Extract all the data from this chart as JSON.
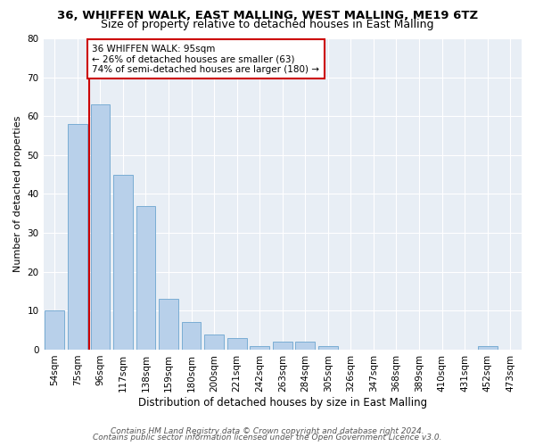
{
  "title_line1": "36, WHIFFEN WALK, EAST MALLING, WEST MALLING, ME19 6TZ",
  "title_line2": "Size of property relative to detached houses in East Malling",
  "xlabel": "Distribution of detached houses by size in East Malling",
  "ylabel": "Number of detached properties",
  "categories": [
    "54sqm",
    "75sqm",
    "96sqm",
    "117sqm",
    "138sqm",
    "159sqm",
    "180sqm",
    "200sqm",
    "221sqm",
    "242sqm",
    "263sqm",
    "284sqm",
    "305sqm",
    "326sqm",
    "347sqm",
    "368sqm",
    "389sqm",
    "410sqm",
    "431sqm",
    "452sqm",
    "473sqm"
  ],
  "values": [
    10,
    58,
    63,
    45,
    37,
    13,
    7,
    4,
    3,
    1,
    2,
    2,
    1,
    0,
    0,
    0,
    0,
    0,
    0,
    1,
    0
  ],
  "bar_color": "#b8d0ea",
  "bar_edge_color": "#7aadd4",
  "vline_color": "#cc0000",
  "vline_x_index": 1.5,
  "ylim": [
    0,
    80
  ],
  "yticks": [
    0,
    10,
    20,
    30,
    40,
    50,
    60,
    70,
    80
  ],
  "annotation_line1": "36 WHIFFEN WALK: 95sqm",
  "annotation_line2": "← 26% of detached houses are smaller (63)",
  "annotation_line3": "74% of semi-detached houses are larger (180) →",
  "annotation_box_color": "#cc0000",
  "background_color": "#e8eef5",
  "footer_line1": "Contains HM Land Registry data © Crown copyright and database right 2024.",
  "footer_line2": "Contains public sector information licensed under the Open Government Licence v3.0.",
  "title_fontsize": 9.5,
  "subtitle_fontsize": 9,
  "xlabel_fontsize": 8.5,
  "ylabel_fontsize": 8,
  "tick_fontsize": 7.5,
  "annotation_fontsize": 7.5,
  "footer_fontsize": 6.5
}
